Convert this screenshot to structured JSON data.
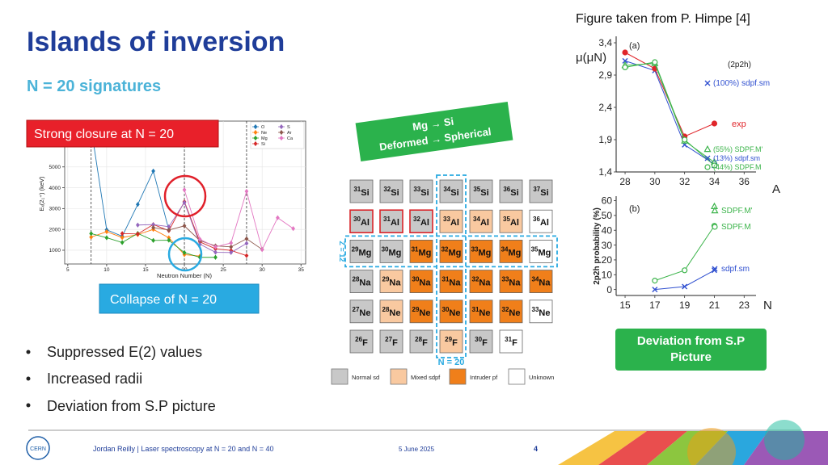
{
  "header": {
    "title": "Islands of inversion",
    "subtitle": "N = 20 signatures",
    "credit": "Figure taken from P. Himpe [4]"
  },
  "callouts": {
    "strong_closure": "Strong closure at N = 20",
    "collapse": "Collapse of N = 20",
    "transition": [
      "Mg → Si",
      "Deformed → Spherical"
    ],
    "deviation": "Deviation from S.P Picture"
  },
  "bullets": [
    "Suppressed E(2) values",
    "Increased radii",
    "Deviation from S.P picture"
  ],
  "chart_data": [
    {
      "type": "line",
      "y_label": "Eₓ(2₁⁺) (keV)",
      "x_label": "Neutron Number (N)",
      "xlim": [
        4.6,
        35.6
      ],
      "ylim": [
        340,
        7200
      ],
      "xticks": [
        5,
        10,
        15,
        20,
        25,
        30,
        35
      ],
      "yticks": [
        1000,
        2000,
        3000,
        4000,
        5000
      ],
      "grid": true,
      "vlines": [
        8,
        20,
        28
      ],
      "series": [
        {
          "name": "O",
          "color": "#1f77b4",
          "marker": "diamond",
          "x": [
            8,
            10,
            12,
            14,
            16,
            18
          ],
          "values": [
            6900,
            1980,
            1670,
            3200,
            4800,
            1980
          ]
        },
        {
          "name": "Ne",
          "color": "#ff7f0e",
          "marker": "diamond",
          "x": [
            8,
            10,
            12,
            14,
            16,
            18,
            20,
            22
          ],
          "values": [
            1630,
            1890,
            1610,
            1750,
            2000,
            1600,
            790,
            720
          ]
        },
        {
          "name": "Mg",
          "color": "#2ca02c",
          "marker": "diamond",
          "x": [
            8,
            10,
            12,
            14,
            16,
            18,
            20,
            22,
            24
          ],
          "values": [
            1800,
            1600,
            1370,
            1810,
            1470,
            1480,
            885,
            660,
            660
          ]
        },
        {
          "name": "Si",
          "color": "#d62728",
          "marker": "diamond",
          "x": [
            12,
            14,
            16,
            18,
            20,
            22,
            24,
            26,
            28
          ],
          "values": [
            1800,
            1780,
            2235,
            1940,
            3330,
            1400,
            1070,
            990,
            740
          ]
        },
        {
          "name": "S",
          "color": "#9467bd",
          "marker": "diamond",
          "x": [
            14,
            16,
            18,
            20,
            22,
            24,
            26,
            28
          ],
          "values": [
            2210,
            2230,
            2130,
            3290,
            1290,
            900,
            890,
            1330
          ]
        },
        {
          "name": "Ar",
          "color": "#8c564b",
          "marker": "diamond",
          "x": [
            16,
            18,
            20,
            22,
            24,
            26,
            28,
            30
          ],
          "values": [
            2090,
            1970,
            2170,
            1460,
            1210,
            1160,
            1550,
            1040
          ]
        },
        {
          "name": "Ca",
          "color": "#e377c2",
          "marker": "diamond",
          "x": [
            20,
            22,
            24,
            26,
            28,
            30,
            32,
            34
          ],
          "values": [
            3900,
            1525,
            1160,
            1350,
            3830,
            1030,
            2560,
            2040
          ]
        }
      ]
    },
    {
      "type": "line",
      "panel": "(a)",
      "note": "(2p2h)",
      "y_label": "μ(μN)",
      "x_label": "A",
      "xlim": [
        27.4,
        36.8
      ],
      "ylim": [
        1.4,
        3.5
      ],
      "xticks": [
        28,
        30,
        32,
        34,
        36
      ],
      "yticks": [
        {
          "value": 3.4,
          "label": "3,4"
        },
        {
          "value": 2.9,
          "label": "2,9"
        },
        {
          "value": 2.4,
          "label": "2,4"
        },
        {
          "value": 1.9,
          "label": "1,9"
        },
        {
          "value": 1.4,
          "label": "1,4"
        }
      ],
      "x": [
        28,
        30,
        32,
        34
      ],
      "series": [
        {
          "name": "(100%) sdpf.sm",
          "color": "#3050d0",
          "marker": "x",
          "values": [
            3.12,
            2.97,
            1.82,
            1.52
          ]
        },
        {
          "name": "exp",
          "color": "#e0262b",
          "marker": "circle",
          "values": [
            3.25,
            3.0,
            1.95,
            2.15
          ]
        },
        {
          "name": "(55%) SDPF.M'",
          "color": "#3cb44b",
          "marker": "triangle",
          "open": true,
          "values": [
            3.05,
            3.08,
            1.88,
            1.55
          ]
        },
        {
          "name": "(13%) sdpf.sm",
          "color": "#3050d0",
          "marker": "x",
          "line": false,
          "values": [
            null,
            null,
            null,
            1.5
          ]
        },
        {
          "name": "(44%) SDPF.M",
          "color": "#3cb44b",
          "marker": "circle",
          "open": true,
          "values": [
            3.02,
            3.1,
            1.9,
            1.5
          ]
        }
      ]
    },
    {
      "type": "line",
      "panel": "(b)",
      "y_label": "2p2h probability (%)",
      "x_label": "N",
      "xlim": [
        14.4,
        23.8
      ],
      "ylim": [
        -4,
        63
      ],
      "xticks": [
        15,
        17,
        19,
        21,
        23
      ],
      "yticks": [
        0,
        10,
        20,
        30,
        40,
        50,
        60
      ],
      "x": [
        17,
        19,
        21
      ],
      "series": [
        {
          "name": "SDPF.M'",
          "color": "#3cb44b",
          "marker": "triangle",
          "open": true,
          "line": false,
          "values": [
            null,
            null,
            56
          ]
        },
        {
          "name": "SDPF.M",
          "color": "#3cb44b",
          "marker": "circle",
          "open": true,
          "values": [
            6,
            13,
            43
          ]
        },
        {
          "name": "sdpf.sm",
          "color": "#3050d0",
          "marker": "x",
          "values": [
            0,
            2,
            13
          ]
        }
      ]
    }
  ],
  "nuclear_chart": {
    "column_label": "N = 20",
    "row_label": "Z = 12",
    "rows": [
      {
        "element": "Si",
        "cells": [
          {
            "mass": 31,
            "color": "#c8c8c8"
          },
          {
            "mass": 32,
            "color": "#c8c8c8"
          },
          {
            "mass": 33,
            "color": "#c8c8c8"
          },
          {
            "mass": 34,
            "color": "#c8c8c8"
          },
          {
            "mass": 35,
            "color": "#c8c8c8"
          },
          {
            "mass": 36,
            "color": "#c8c8c8"
          },
          {
            "mass": 37,
            "color": "#c8c8c8"
          }
        ]
      },
      {
        "element": "Al",
        "cells": [
          {
            "mass": 30,
            "color": "#c8c8c8",
            "border": "#d9262b"
          },
          {
            "mass": 31,
            "color": "#c8c8c8",
            "border": "#d9262b"
          },
          {
            "mass": 32,
            "color": "#c8c8c8",
            "border": "#d9262b"
          },
          {
            "mass": 33,
            "color": "#f9c9a0"
          },
          {
            "mass": 34,
            "color": "#f9c9a0"
          },
          {
            "mass": 35,
            "color": "#f9c9a0"
          },
          {
            "mass": 36,
            "color": "#ffffff"
          }
        ]
      },
      {
        "element": "Mg",
        "cells": [
          {
            "mass": 29,
            "color": "#c8c8c8"
          },
          {
            "mass": 30,
            "color": "#c8c8c8"
          },
          {
            "mass": 31,
            "color": "#f07f1a"
          },
          {
            "mass": 32,
            "color": "#f07f1a"
          },
          {
            "mass": 33,
            "color": "#f07f1a"
          },
          {
            "mass": 34,
            "color": "#f07f1a"
          },
          {
            "mass": 35,
            "color": "#ffffff"
          }
        ]
      },
      {
        "element": "Na",
        "cells": [
          {
            "mass": 28,
            "color": "#c8c8c8"
          },
          {
            "mass": 29,
            "color": "#f9c9a0"
          },
          {
            "mass": 30,
            "color": "#f07f1a"
          },
          {
            "mass": 31,
            "color": "#f07f1a"
          },
          {
            "mass": 32,
            "color": "#f07f1a"
          },
          {
            "mass": 33,
            "color": "#f07f1a"
          },
          {
            "mass": 34,
            "color": "#f07f1a"
          }
        ]
      },
      {
        "element": "Ne",
        "cells": [
          {
            "mass": 27,
            "color": "#c8c8c8"
          },
          {
            "mass": 28,
            "color": "#f9c9a0"
          },
          {
            "mass": 29,
            "color": "#f07f1a"
          },
          {
            "mass": 30,
            "color": "#f07f1a"
          },
          {
            "mass": 31,
            "color": "#f07f1a"
          },
          {
            "mass": 32,
            "color": "#f07f1a"
          },
          {
            "mass": 33,
            "color": "#ffffff"
          }
        ]
      },
      {
        "element": "F",
        "cells": [
          {
            "mass": 26,
            "color": "#c8c8c8"
          },
          {
            "mass": 27,
            "color": "#c8c8c8"
          },
          {
            "mass": 28,
            "color": "#c8c8c8"
          },
          {
            "mass": 29,
            "color": "#f9c9a0"
          },
          {
            "mass": 30,
            "color": "#c8c8c8"
          },
          {
            "mass": 31,
            "color": "#ffffff"
          }
        ]
      }
    ],
    "legend": [
      {
        "label": "Normal sd",
        "color": "#c8c8c8"
      },
      {
        "label": "Mixed sdpf",
        "color": "#f9c9a0"
      },
      {
        "label": "Intruder pf",
        "color": "#f07f1a"
      },
      {
        "label": "Unknown",
        "color": "#ffffff"
      }
    ]
  },
  "footer": {
    "author": "Jordan Reilly | Laser spectroscopy at N = 20 and N = 40",
    "date": "5 June 2025",
    "page": 4,
    "logo": "CERN"
  }
}
